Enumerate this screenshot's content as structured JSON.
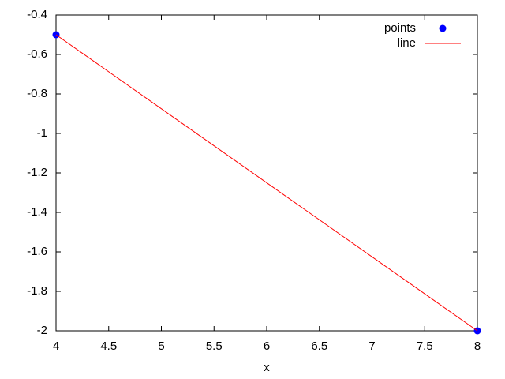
{
  "chart_data": {
    "type": "scatter",
    "xlabel": "x",
    "series": [
      {
        "name": "points",
        "color": "#0000ff",
        "style": "points",
        "x": [
          4,
          8
        ],
        "values": [
          -0.5,
          -2
        ]
      },
      {
        "name": "line",
        "color": "#ff0000",
        "style": "lines",
        "x": [
          4,
          8
        ],
        "values": [
          -0.5,
          -2
        ]
      }
    ],
    "xlim": [
      4,
      8
    ],
    "xticks": [
      4,
      4.5,
      5,
      5.5,
      6,
      6.5,
      7,
      7.5,
      8
    ],
    "ylim": [
      -2,
      -0.4
    ],
    "yticks": [
      -2,
      -1.8,
      -1.6,
      -1.4,
      -1.2,
      -1,
      -0.8,
      -0.6,
      -0.4
    ],
    "legend": "top-right",
    "grid": false
  }
}
